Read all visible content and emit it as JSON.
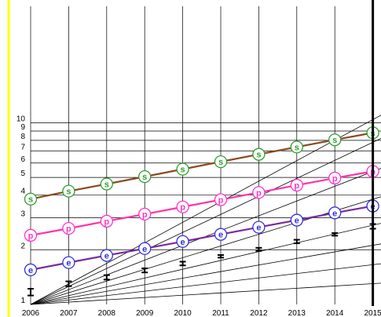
{
  "chart_data": {
    "type": "line",
    "title": "",
    "xlabel": "",
    "ylabel": "",
    "scale": "log",
    "grid": true,
    "x": [
      2006,
      2007,
      2008,
      2009,
      2010,
      2011,
      2012,
      2013,
      2014,
      2015
    ],
    "x_tick_labels": [
      "2006",
      "2007",
      "2008",
      "2009",
      "2010",
      "2011",
      "2012",
      "2013",
      "2014",
      "2015"
    ],
    "y_tick_labels": [
      "1",
      "2",
      "3",
      "4",
      "5",
      "6",
      "7",
      "8",
      "9",
      "10"
    ],
    "y_ticks": [
      1,
      2,
      3,
      4,
      5,
      6,
      7,
      8,
      9,
      10
    ],
    "xlim": [
      2006,
      2015
    ],
    "ylim": [
      1,
      13.5
    ],
    "series": [
      {
        "marker": "s",
        "color": "#2e9e2e",
        "line_color": "#8a4a1e",
        "values": [
          3.8,
          4.2,
          4.6,
          5.05,
          5.55,
          6.1,
          6.7,
          7.35,
          8.05,
          8.8
        ]
      },
      {
        "marker": "p",
        "color": "#ff33cc",
        "line_color": "#ff33aa",
        "values": [
          2.4,
          2.62,
          2.87,
          3.14,
          3.44,
          3.77,
          4.13,
          4.53,
          4.96,
          5.4
        ]
      },
      {
        "marker": "e",
        "color": "#3333dd",
        "line_color": "#7a2a9e",
        "values": [
          1.55,
          1.7,
          1.86,
          2.03,
          2.22,
          2.43,
          2.66,
          2.91,
          3.19,
          3.48
        ]
      }
    ],
    "error_bars": {
      "color": "#000000",
      "points": [
        {
          "x": 2006,
          "low": 1.12,
          "high": 1.22
        },
        {
          "x": 2007,
          "low": 1.26,
          "high": 1.34
        },
        {
          "x": 2008,
          "low": 1.37,
          "high": 1.45
        },
        {
          "x": 2009,
          "low": 1.5,
          "high": 1.58
        },
        {
          "x": 2010,
          "low": 1.64,
          "high": 1.72
        },
        {
          "x": 2011,
          "low": 1.81,
          "high": 1.87
        },
        {
          "x": 2012,
          "low": 1.97,
          "high": 2.05
        },
        {
          "x": 2013,
          "low": 2.17,
          "high": 2.27
        },
        {
          "x": 2014,
          "low": 2.39,
          "high": 2.47
        },
        {
          "x": 2015,
          "low": 2.61,
          "high": 2.77
        }
      ]
    },
    "reference_lines": {
      "color": "#000000",
      "origin": [
        2006,
        1
      ],
      "end_values_at_2016": [
        1.34,
        1.75,
        2.3,
        3.05,
        4.4,
        6.5,
        9.8,
        13.5
      ]
    },
    "left_bar_color": "#ffff00",
    "right_bar_color": "#000000"
  }
}
